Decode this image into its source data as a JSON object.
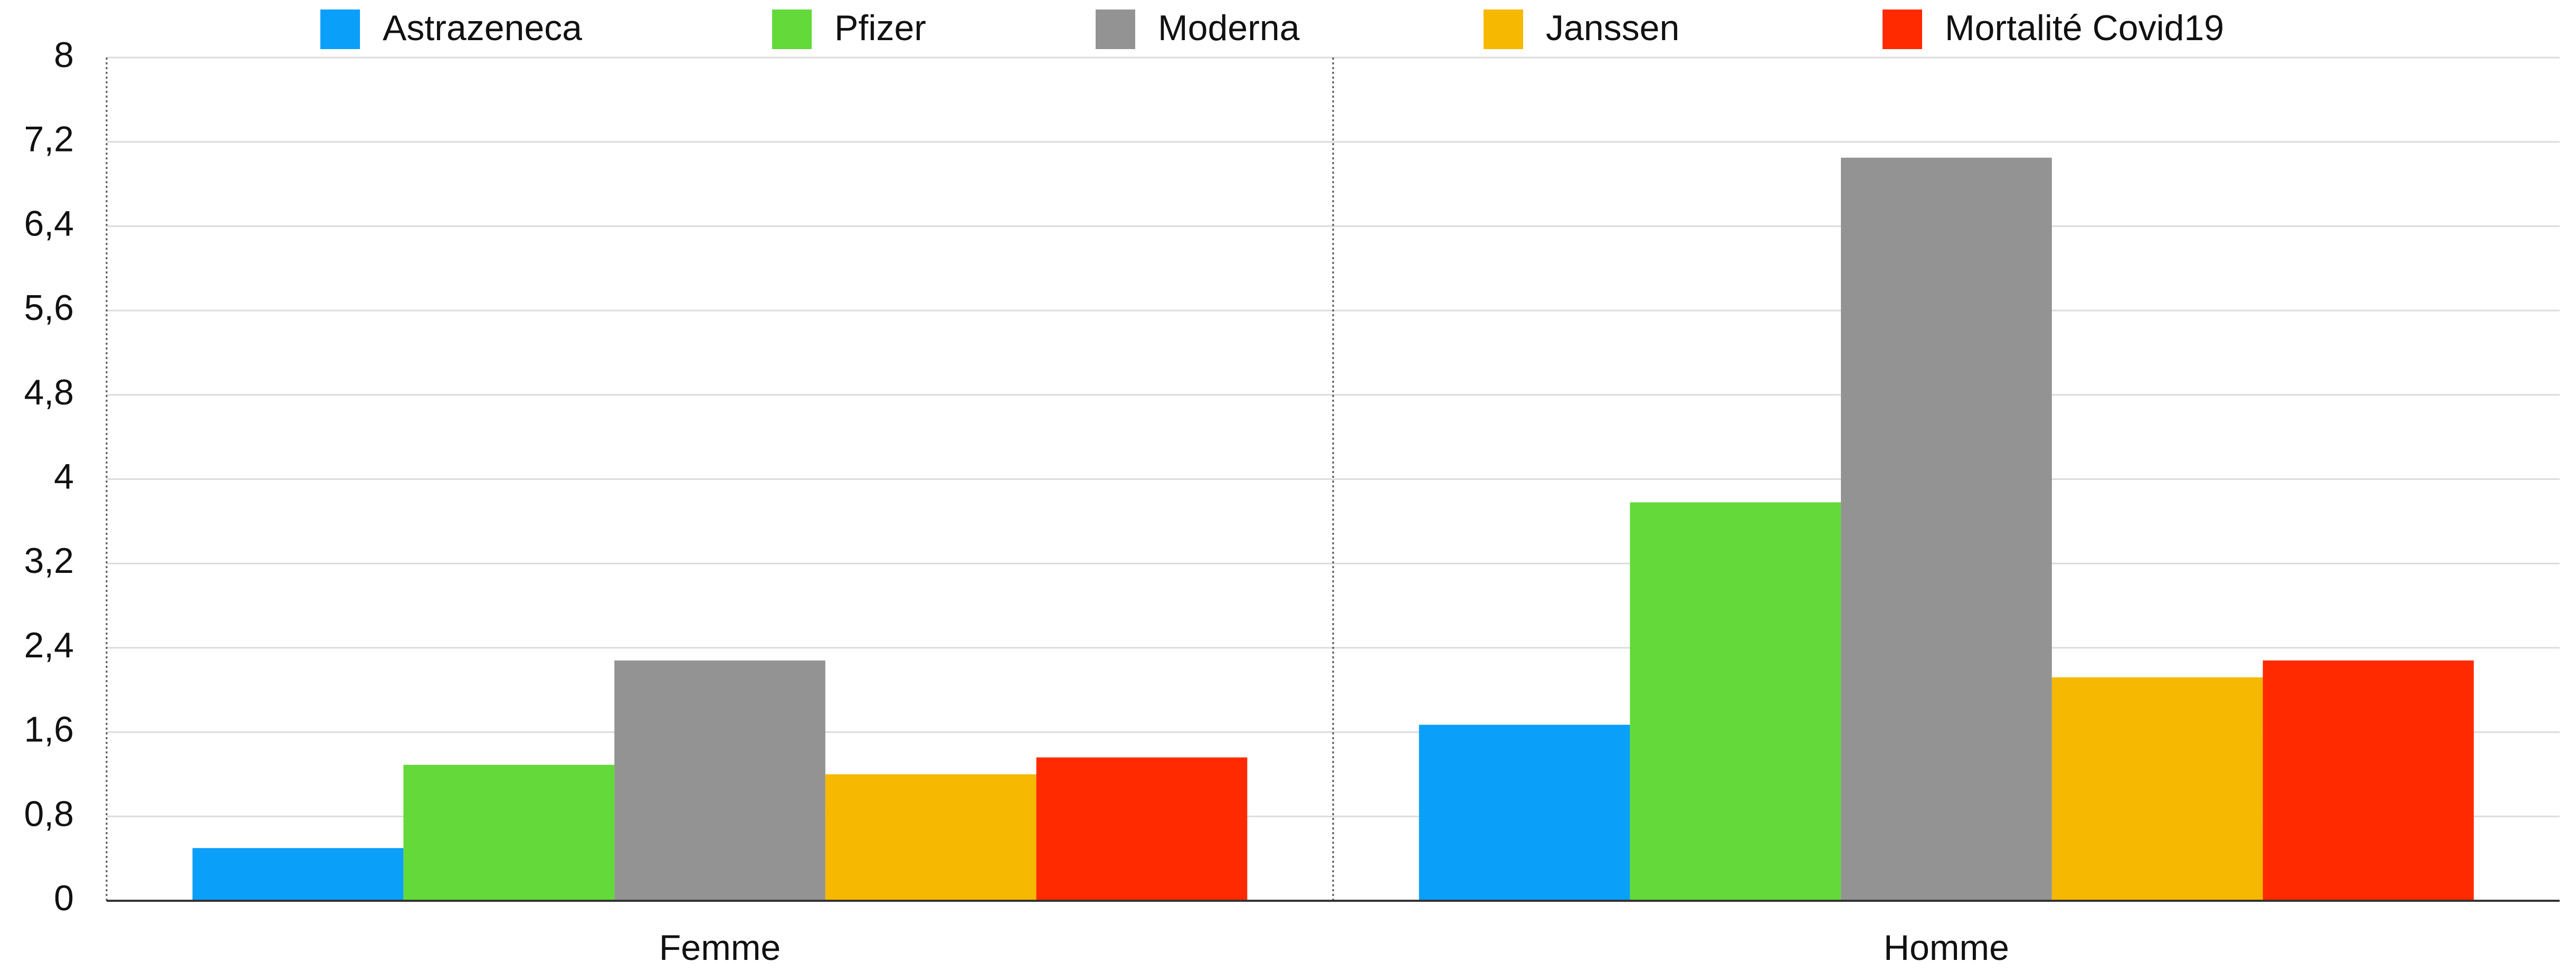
{
  "chart_data": {
    "type": "bar",
    "categories": [
      "Femme",
      "Homme"
    ],
    "series": [
      {
        "name": "Astrazeneca",
        "color": "#0a9ff9",
        "values": [
          0.5,
          1.67
        ]
      },
      {
        "name": "Pfizer",
        "color": "#63d93a",
        "values": [
          1.29,
          3.78
        ]
      },
      {
        "name": "Moderna",
        "color": "#939393",
        "values": [
          2.28,
          7.05
        ]
      },
      {
        "name": "Janssen",
        "color": "#f6b800",
        "values": [
          1.2,
          2.12
        ]
      },
      {
        "name": "Mortalité Covid19",
        "color": "#ff2a00",
        "values": [
          1.36,
          2.28
        ]
      }
    ],
    "ylim": [
      0,
      8
    ],
    "yticks": [
      0,
      {
        "value": 0.8,
        "label": "0,8"
      },
      {
        "value": 1.6,
        "label": "1,6"
      },
      {
        "value": 2.4,
        "label": "2,4"
      },
      {
        "value": 3.2,
        "label": "3,2"
      },
      4,
      {
        "value": 4.8,
        "label": "4,8"
      },
      {
        "value": 5.6,
        "label": "5,6"
      },
      {
        "value": 6.4,
        "label": "6,4"
      },
      {
        "value": 7.2,
        "label": "7,2"
      },
      8
    ],
    "grid": true,
    "legend": "top"
  }
}
